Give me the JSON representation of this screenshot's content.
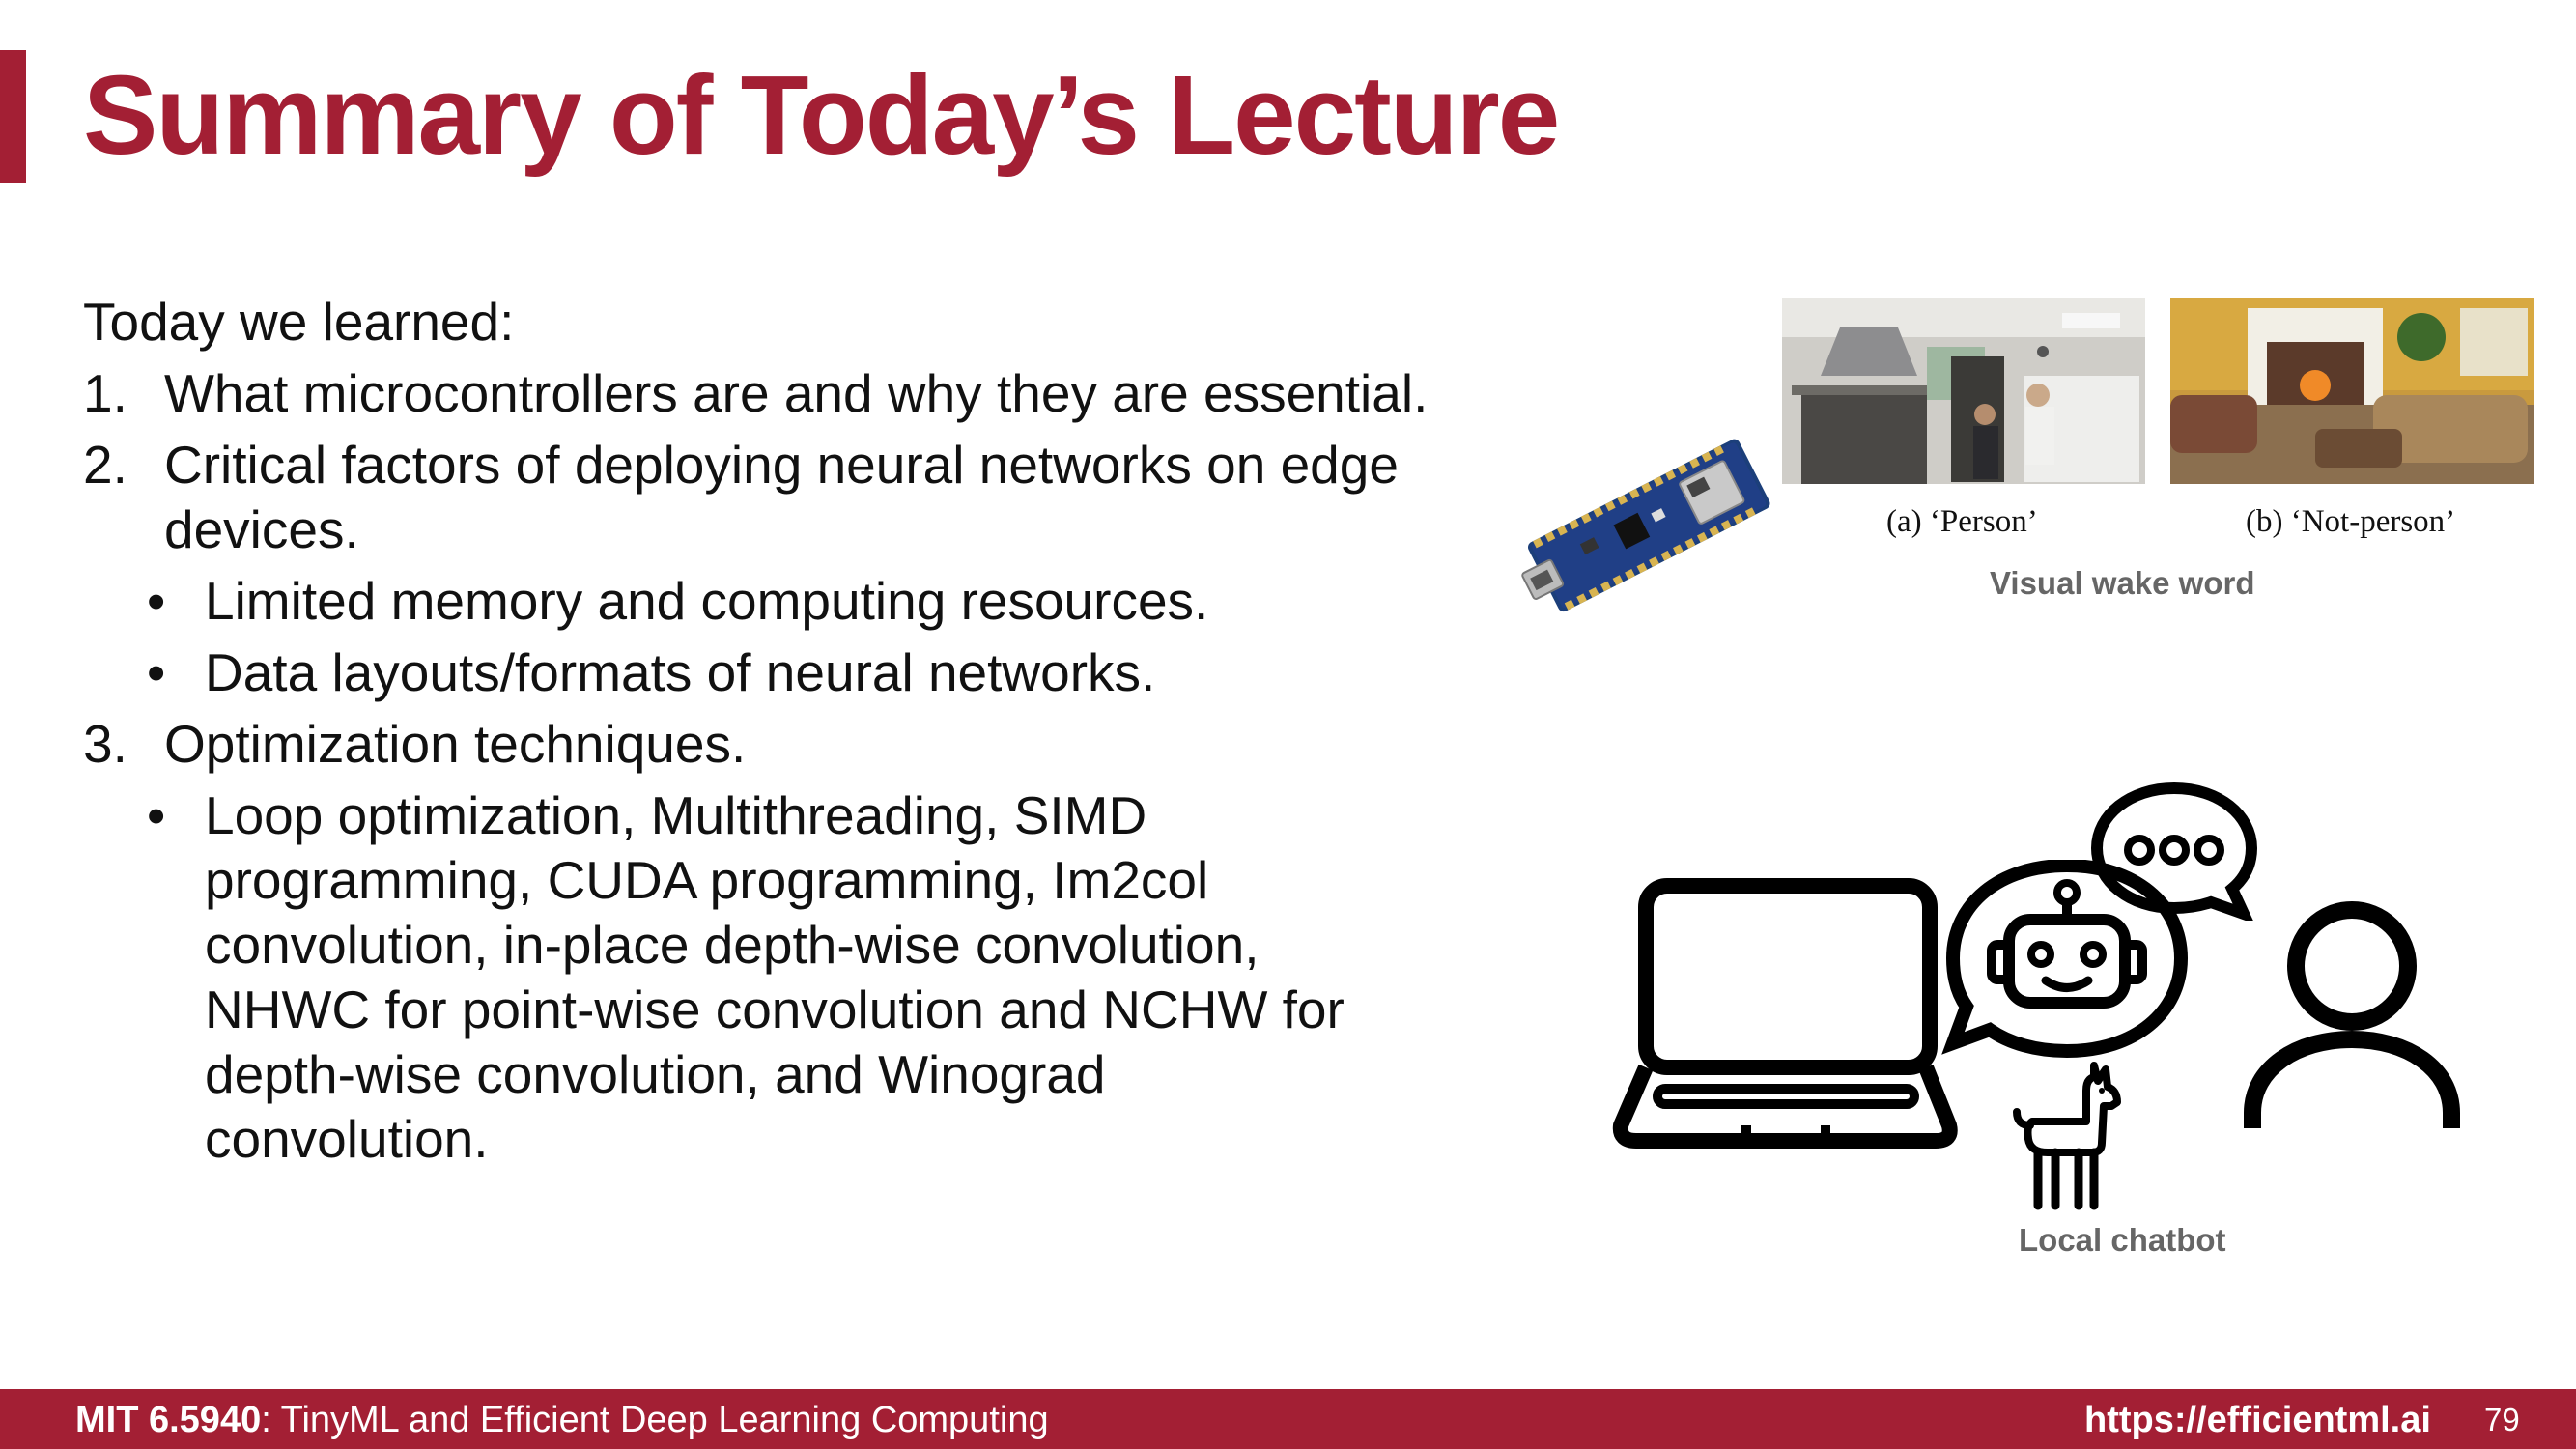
{
  "slide": {
    "title": "Summary of Today’s Lecture"
  },
  "content": {
    "intro": "Today we learned:",
    "items": [
      {
        "number": "1.",
        "text": "What microcontrollers are and why they are essential."
      },
      {
        "number": "2.",
        "text": "Critical factors of deploying neural networks on edge devices."
      },
      {
        "number": "3.",
        "text": "Optimization techniques."
      }
    ],
    "sub_item_2": [
      {
        "bullet": "•",
        "text": "Limited memory and computing resources."
      },
      {
        "bullet": "•",
        "text": "Data layouts/formats of neural networks."
      }
    ],
    "sub_item_3": [
      {
        "bullet": "•",
        "text": "Loop optimization, Multithreading, SIMD programming, CUDA programming, Im2col convolution, in-place depth-wise convolution, NHWC for point-wise convolution and NCHW for depth-wise convolution, and Winograd convolution."
      }
    ]
  },
  "figures": {
    "caption_a": "(a) ‘Person’",
    "caption_b": "(b) ‘Not-person’",
    "visual_wake_word": "Visual wake word",
    "local_chatbot": "Local chatbot",
    "icons": [
      "microcontroller-board",
      "kitchen-photo",
      "living-room-photo",
      "laptop-icon",
      "robot-chat-icon",
      "speech-dots-icon",
      "llama-icon",
      "person-icon"
    ]
  },
  "footer": {
    "course_code": "MIT 6.5940",
    "course_name": ": TinyML and Efficient Deep Learning Computing",
    "url": "https://efficientml.ai",
    "page": "79"
  },
  "colors": {
    "accent": "#a31f34",
    "caption_gray": "#666666"
  }
}
